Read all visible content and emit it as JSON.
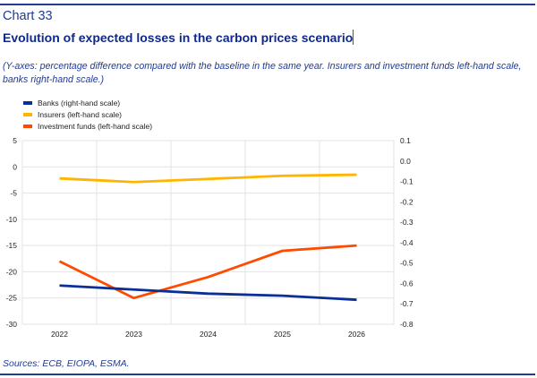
{
  "header": {
    "label": "Chart 33",
    "title": "Evolution of expected losses in the carbon prices scenario",
    "subtitle": "(Y-axes: percentage difference compared with the baseline in the same year. Insurers and investment funds left-hand scale, banks right-hand scale.)"
  },
  "footer": {
    "sources": "Sources: ECB, EIOPA, ESMA."
  },
  "chart_data": {
    "type": "line",
    "categories": [
      "2022",
      "2023",
      "2024",
      "2025",
      "2026"
    ],
    "left_axis": {
      "ylim": [
        -30,
        5
      ],
      "ticks": [
        "5",
        "0",
        "-5",
        "-10",
        "-15",
        "-20",
        "-25",
        "-30"
      ]
    },
    "right_axis": {
      "ylim": [
        -0.8,
        0.1
      ],
      "ticks": [
        "0.1",
        "0.0",
        "-0.1",
        "-0.2",
        "-0.3",
        "-0.4",
        "-0.5",
        "-0.6",
        "-0.7",
        "-0.8"
      ]
    },
    "grid": true,
    "legend_placement": "top-left",
    "series": [
      {
        "name": "Banks (right-hand scale)",
        "axis": "right",
        "color": "#0b2f96",
        "values": [
          -0.61,
          -0.63,
          -0.65,
          -0.66,
          -0.68
        ]
      },
      {
        "name": "Insurers (left-hand scale)",
        "axis": "left",
        "color": "#ffb400",
        "values": [
          -2.2,
          -2.9,
          -2.3,
          -1.7,
          -1.5
        ]
      },
      {
        "name": "Investment funds (left-hand scale)",
        "axis": "left",
        "color": "#ff4b00",
        "values": [
          -18,
          -25,
          -21,
          -16,
          -15
        ]
      }
    ]
  }
}
